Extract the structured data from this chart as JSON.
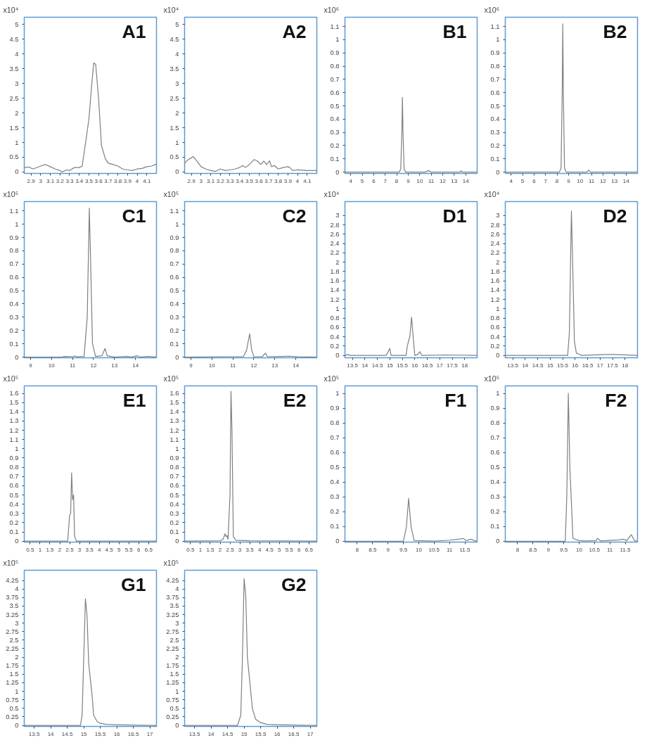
{
  "chart_data": [
    {
      "type": "line",
      "title": "A1",
      "ylabel": "x10⁴",
      "color": "#7f7f7f",
      "xlim": [
        2.83,
        4.2
      ],
      "xticks": [
        2.9,
        3,
        3.1,
        3.2,
        3.3,
        3.4,
        3.5,
        3.6,
        3.7,
        3.8,
        3.9,
        4,
        4.1
      ],
      "ylim": [
        -0.05,
        5.25
      ],
      "yticks": [
        0,
        0.5,
        1,
        1.5,
        2,
        2.5,
        3,
        3.5,
        4,
        4.5,
        5
      ],
      "x": [
        2.83,
        2.88,
        2.92,
        3.0,
        3.05,
        3.1,
        3.15,
        3.2,
        3.22,
        3.27,
        3.3,
        3.35,
        3.4,
        3.43,
        3.47,
        3.5,
        3.53,
        3.55,
        3.57,
        3.6,
        3.63,
        3.67,
        3.7,
        3.75,
        3.8,
        3.85,
        3.9,
        3.95,
        4.0,
        4.05,
        4.1,
        4.15,
        4.2
      ],
      "values": [
        0.15,
        0.17,
        0.1,
        0.2,
        0.25,
        0.18,
        0.1,
        0.05,
        0.0,
        0.07,
        0.05,
        0.15,
        0.15,
        0.2,
        1.1,
        1.8,
        3.0,
        3.7,
        3.65,
        2.5,
        0.9,
        0.45,
        0.3,
        0.25,
        0.2,
        0.1,
        0.07,
        0.05,
        0.1,
        0.12,
        0.18,
        0.2,
        0.27
      ]
    },
    {
      "type": "line",
      "title": "A2",
      "ylabel": "x10⁴",
      "color": "#7f7f7f",
      "xlim": [
        2.83,
        4.2
      ],
      "xticks": [
        2.9,
        3,
        3.1,
        3.2,
        3.3,
        3.4,
        3.5,
        3.6,
        3.7,
        3.8,
        3.9,
        4,
        4.1
      ],
      "ylim": [
        -0.05,
        5.25
      ],
      "yticks": [
        0,
        0.5,
        1,
        1.5,
        2,
        2.5,
        3,
        3.5,
        4,
        4.5,
        5
      ],
      "x": [
        2.83,
        2.86,
        2.92,
        2.95,
        3.0,
        3.05,
        3.1,
        3.15,
        3.2,
        3.25,
        3.3,
        3.35,
        3.4,
        3.43,
        3.46,
        3.5,
        3.55,
        3.58,
        3.62,
        3.65,
        3.68,
        3.71,
        3.73,
        3.76,
        3.8,
        3.85,
        3.9,
        3.92,
        3.95,
        4.0,
        4.1,
        4.2
      ],
      "values": [
        0.3,
        0.4,
        0.52,
        0.4,
        0.18,
        0.1,
        0.05,
        0.02,
        0.1,
        0.05,
        0.07,
        0.1,
        0.15,
        0.22,
        0.15,
        0.25,
        0.42,
        0.38,
        0.25,
        0.37,
        0.25,
        0.38,
        0.18,
        0.22,
        0.1,
        0.15,
        0.18,
        0.15,
        0.05,
        0.07,
        0.05,
        0.05
      ]
    },
    {
      "type": "line",
      "title": "B1",
      "ylabel": "x10⁶",
      "color": "#7f7f7f",
      "xlim": [
        3.5,
        15
      ],
      "xticks": [
        4,
        5,
        6,
        7,
        8,
        9,
        10,
        11,
        12,
        13,
        14
      ],
      "ylim": [
        -0.01,
        1.17
      ],
      "yticks": [
        0,
        0.1,
        0.2,
        0.3,
        0.4,
        0.5,
        0.6,
        0.7,
        0.8,
        0.9,
        1,
        1.1
      ],
      "x": [
        3.5,
        8.2,
        8.35,
        8.45,
        8.5,
        8.55,
        8.65,
        8.8,
        10.5,
        10.75,
        11,
        13.5,
        13.6,
        13.7,
        15
      ],
      "values": [
        0,
        0,
        0.02,
        0.3,
        0.565,
        0.3,
        0.02,
        0,
        0,
        0.012,
        0,
        0,
        0.01,
        0,
        0
      ]
    },
    {
      "type": "line",
      "title": "B2",
      "ylabel": "x10⁶",
      "color": "#7f7f7f",
      "xlim": [
        3.5,
        15
      ],
      "xticks": [
        4,
        5,
        6,
        7,
        8,
        9,
        10,
        11,
        12,
        13,
        14
      ],
      "ylim": [
        -0.01,
        1.17
      ],
      "yticks": [
        0,
        0.1,
        0.2,
        0.3,
        0.4,
        0.5,
        0.6,
        0.7,
        0.8,
        0.9,
        1,
        1.1
      ],
      "x": [
        3.5,
        8.2,
        8.35,
        8.45,
        8.5,
        8.55,
        8.65,
        8.8,
        10.6,
        10.75,
        10.9,
        15
      ],
      "values": [
        0,
        0,
        0.03,
        0.6,
        1.12,
        0.6,
        0.03,
        0,
        0,
        0.015,
        0,
        0
      ]
    },
    {
      "type": "line",
      "title": "C1",
      "ylabel": "x10⁵",
      "color": "#7f7f7f",
      "xlim": [
        8.7,
        15
      ],
      "xticks": [
        9,
        10,
        11,
        12,
        13,
        14
      ],
      "ylim": [
        -0.005,
        1.17
      ],
      "yticks": [
        0,
        0.1,
        0.2,
        0.3,
        0.4,
        0.5,
        0.6,
        0.7,
        0.8,
        0.9,
        1,
        1.1
      ],
      "x": [
        8.7,
        10.5,
        10.6,
        11,
        11.1,
        11.2,
        11.55,
        11.7,
        11.8,
        11.85,
        11.95,
        12.1,
        12.4,
        12.55,
        12.65,
        13,
        13.6,
        13.8,
        14.1,
        14.2,
        14.6,
        15
      ],
      "values": [
        0,
        0,
        0.005,
        0.003,
        0.008,
        0.002,
        0.005,
        0.3,
        1.12,
        0.8,
        0.1,
        0.005,
        0.01,
        0.065,
        0.01,
        0,
        0.005,
        0,
        0.01,
        0,
        0.005,
        0
      ]
    },
    {
      "type": "line",
      "title": "C2",
      "ylabel": "x10⁵",
      "color": "#7f7f7f",
      "xlim": [
        8.7,
        15
      ],
      "xticks": [
        9,
        10,
        11,
        12,
        13,
        14
      ],
      "ylim": [
        -0.005,
        1.17
      ],
      "yticks": [
        0,
        0.1,
        0.2,
        0.3,
        0.4,
        0.5,
        0.6,
        0.7,
        0.8,
        0.9,
        1,
        1.1
      ],
      "x": [
        8.7,
        10.6,
        11.5,
        11.65,
        11.8,
        11.9,
        12.0,
        12.4,
        12.55,
        12.65,
        13.3,
        13.7,
        14.1,
        15
      ],
      "values": [
        0,
        0.003,
        0.003,
        0.05,
        0.175,
        0.05,
        0.003,
        0.003,
        0.03,
        0.003,
        0.005,
        0.007,
        0.002,
        0
      ]
    },
    {
      "type": "line",
      "title": "D1",
      "ylabel": "x10⁴",
      "color": "#7f7f7f",
      "xlim": [
        13.2,
        18.5
      ],
      "xticks": [
        13.5,
        14,
        14.5,
        15,
        15.5,
        16,
        16.5,
        17,
        17.5,
        18
      ],
      "ylim": [
        -0.05,
        3.3
      ],
      "yticks": [
        0,
        0.2,
        0.4,
        0.6,
        0.8,
        1,
        1.2,
        1.4,
        1.6,
        1.8,
        2,
        2.2,
        2.4,
        2.6,
        2.8,
        3
      ],
      "x": [
        13.2,
        13.3,
        13.4,
        14.85,
        14.9,
        15.0,
        15.05,
        15.65,
        15.7,
        15.77,
        15.8,
        15.87,
        15.95,
        16.0,
        16.12,
        16.2,
        16.28,
        17.2,
        18.5
      ],
      "values": [
        0,
        0.02,
        0,
        0,
        0.05,
        0.15,
        0,
        0,
        0.2,
        0.35,
        0.4,
        0.82,
        0.3,
        0,
        0.02,
        0.08,
        0,
        0.01,
        0
      ]
    },
    {
      "type": "line",
      "title": "D2",
      "ylabel": "x10⁴",
      "color": "#7f7f7f",
      "xlim": [
        13.2,
        18.5
      ],
      "xticks": [
        13.5,
        14,
        14.5,
        15,
        15.5,
        16,
        16.5,
        17,
        17.5,
        18
      ],
      "ylim": [
        -0.05,
        3.3
      ],
      "yticks": [
        0,
        0.2,
        0.4,
        0.6,
        0.8,
        1,
        1.2,
        1.4,
        1.6,
        1.8,
        2,
        2.2,
        2.4,
        2.6,
        2.8,
        3
      ],
      "x": [
        13.2,
        15.7,
        15.77,
        15.85,
        15.9,
        15.97,
        16.05,
        16.15,
        16.25,
        17.2,
        17.6,
        18.5
      ],
      "values": [
        0,
        0,
        0.5,
        3.1,
        2.0,
        0.3,
        0.05,
        0.03,
        0,
        0.02,
        0.02,
        0
      ]
    },
    {
      "type": "line",
      "title": "E1",
      "ylabel": "x10⁵",
      "color": "#7f7f7f",
      "xlim": [
        0.2,
        6.9
      ],
      "xticks": [
        0.5,
        1,
        1.5,
        2,
        2.5,
        3,
        3.5,
        4,
        4.5,
        5,
        5.5,
        6,
        6.5
      ],
      "ylim": [
        -0.01,
        1.68
      ],
      "yticks": [
        0,
        0.1,
        0.2,
        0.3,
        0.4,
        0.5,
        0.6,
        0.7,
        0.8,
        0.9,
        1,
        1.1,
        1.2,
        1.3,
        1.4,
        1.5,
        1.6
      ],
      "x": [
        0.2,
        2.4,
        2.5,
        2.55,
        2.6,
        2.65,
        2.7,
        2.75,
        2.85,
        6.9
      ],
      "values": [
        0,
        0,
        0.28,
        0.3,
        0.74,
        0.45,
        0.5,
        0.05,
        0,
        0
      ]
    },
    {
      "type": "line",
      "title": "E2",
      "ylabel": "x10⁵",
      "color": "#7f7f7f",
      "xlim": [
        0.2,
        6.9
      ],
      "xticks": [
        0.5,
        1,
        1.5,
        2,
        2.5,
        3,
        3.5,
        4,
        4.5,
        5,
        5.5,
        6,
        6.5
      ],
      "ylim": [
        -0.01,
        1.68
      ],
      "yticks": [
        0,
        0.1,
        0.2,
        0.3,
        0.4,
        0.5,
        0.6,
        0.7,
        0.8,
        0.9,
        1,
        1.1,
        1.2,
        1.3,
        1.4,
        1.5,
        1.6
      ],
      "x": [
        0.2,
        2.0,
        2.15,
        2.25,
        2.3,
        2.35,
        2.4,
        2.5,
        2.55,
        2.6,
        2.67,
        2.8,
        3.5,
        6.9
      ],
      "values": [
        0,
        0.005,
        0.02,
        0.08,
        0.05,
        0.06,
        0.02,
        0.5,
        1.62,
        1.2,
        0.05,
        0.01,
        0.005,
        0
      ]
    },
    {
      "type": "line",
      "title": "F1",
      "ylabel": "x10⁵",
      "color": "#7f7f7f",
      "xlim": [
        7.6,
        11.9
      ],
      "xticks": [
        8,
        8.5,
        9,
        9.5,
        10,
        10.5,
        11,
        11.5
      ],
      "ylim": [
        -0.005,
        1.05
      ],
      "yticks": [
        0,
        0.1,
        0.2,
        0.3,
        0.4,
        0.5,
        0.6,
        0.7,
        0.8,
        0.9,
        1
      ],
      "x": [
        7.6,
        9.5,
        9.6,
        9.67,
        9.75,
        9.85,
        10.5,
        11,
        11.3,
        11.45,
        11.55,
        11.7,
        11.8,
        11.9
      ],
      "values": [
        0,
        0,
        0.1,
        0.29,
        0.1,
        0.005,
        0.002,
        0.008,
        0.015,
        0.02,
        0.005,
        0.015,
        0.005,
        0
      ]
    },
    {
      "type": "line",
      "title": "F2",
      "ylabel": "x10⁵",
      "color": "#7f7f7f",
      "xlim": [
        7.6,
        11.9
      ],
      "xticks": [
        8,
        8.5,
        9,
        9.5,
        10,
        10.5,
        11,
        11.5
      ],
      "ylim": [
        -0.005,
        1.05
      ],
      "yticks": [
        0,
        0.1,
        0.2,
        0.3,
        0.4,
        0.5,
        0.6,
        0.7,
        0.8,
        0.9,
        1
      ],
      "x": [
        7.6,
        9.55,
        9.6,
        9.65,
        9.7,
        9.8,
        10.0,
        10.2,
        10.55,
        10.6,
        10.7,
        11.3,
        11.45,
        11.55,
        11.7,
        11.8,
        11.9
      ],
      "values": [
        0,
        0,
        0.3,
        1.0,
        0.5,
        0.02,
        0.005,
        0.003,
        0.005,
        0.02,
        0.003,
        0.01,
        0.015,
        0.005,
        0.045,
        0.005,
        0
      ]
    },
    {
      "type": "line",
      "title": "G1",
      "ylabel": "x10⁵",
      "color": "#7f7f7f",
      "xlim": [
        13.2,
        17.2
      ],
      "xticks": [
        13.5,
        14,
        14.5,
        15,
        15.5,
        16,
        16.5,
        17
      ],
      "ylim": [
        -0.03,
        4.55
      ],
      "yticks": [
        0,
        0.25,
        0.5,
        0.75,
        1,
        1.25,
        1.5,
        1.75,
        2,
        2.25,
        2.5,
        2.75,
        3,
        3.25,
        3.5,
        3.75,
        4,
        4.25
      ],
      "x": [
        13.2,
        14.9,
        14.95,
        15.0,
        15.05,
        15.1,
        15.15,
        15.25,
        15.3,
        15.4,
        15.5,
        15.7,
        16.0,
        16.5,
        17.2
      ],
      "values": [
        0,
        0,
        0.3,
        2.0,
        3.72,
        3.2,
        1.8,
        0.9,
        0.3,
        0.12,
        0.06,
        0.03,
        0.02,
        0.01,
        0
      ]
    },
    {
      "type": "line",
      "title": "G2",
      "ylabel": "x10⁵",
      "color": "#7f7f7f",
      "xlim": [
        13.2,
        17.2
      ],
      "xticks": [
        13.5,
        14,
        14.5,
        15,
        15.5,
        16,
        16.5,
        17
      ],
      "ylim": [
        -0.03,
        4.55
      ],
      "yticks": [
        0,
        0.25,
        0.5,
        0.75,
        1,
        1.25,
        1.5,
        1.75,
        2,
        2.25,
        2.5,
        2.75,
        3,
        3.25,
        3.5,
        3.75,
        4,
        4.25
      ],
      "x": [
        13.2,
        14.8,
        14.9,
        14.95,
        15.0,
        15.05,
        15.1,
        15.25,
        15.35,
        15.5,
        15.7,
        16.0,
        17.2
      ],
      "values": [
        0,
        0,
        0.3,
        2.0,
        4.3,
        3.8,
        2.0,
        0.5,
        0.18,
        0.08,
        0.03,
        0.02,
        0
      ]
    }
  ]
}
